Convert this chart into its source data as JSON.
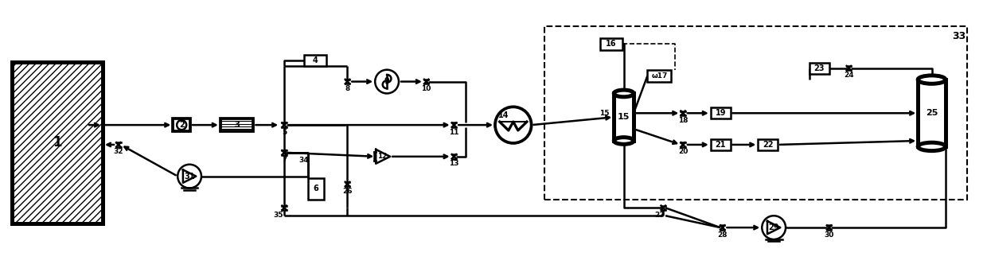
{
  "bg_color": "#ffffff",
  "line_color": "#000000",
  "lw": 1.8,
  "fig_width": 12.4,
  "fig_height": 3.47,
  "dpi": 100,
  "xlim": [
    0,
    124
  ],
  "ylim": [
    0,
    34.7
  ]
}
